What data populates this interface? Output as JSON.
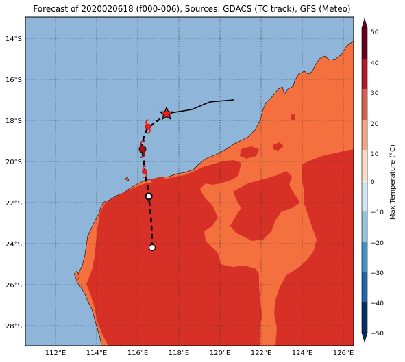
{
  "title": "Forecast of 2020020618 (f000-006), Sources: GDACS (TC track), GFS (Meteo)",
  "lat_labels": [
    "14°S",
    "16°S",
    "18°S",
    "20°S",
    "22°S",
    "24°S",
    "26°S",
    "28°S"
  ],
  "lon_labels": [
    "112°E",
    "114°E",
    "116°E",
    "118°E",
    "120°E",
    "122°E",
    "124°E",
    "126°E"
  ],
  "colorbar": {
    "label": "Max Temperature (°C)",
    "ticks": [
      "50",
      "40",
      "30",
      "20",
      "10",
      "0",
      "−10",
      "−20",
      "−30",
      "−40",
      "−50"
    ],
    "colors": [
      "#67001f",
      "#b2182b",
      "#d6604d",
      "#f4a582",
      "#fddbc7",
      "#f7f7f7",
      "#d1e5f0",
      "#92c5de",
      "#4393c3",
      "#2166ac",
      "#053061"
    ]
  },
  "colors": {
    "ocean": "#8fb5d9",
    "land_warm": "#f4703f",
    "land_hot": "#d73027",
    "track": "#000000",
    "storm_marker": "#e8231e"
  },
  "icons": [
    "star-icon",
    "tropical-storm-icon",
    "circle-marker-icon"
  ]
}
